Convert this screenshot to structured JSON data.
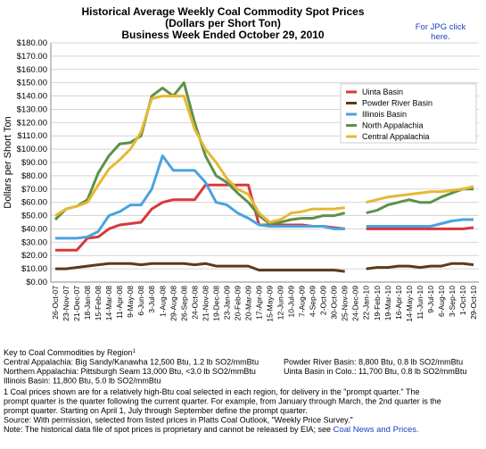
{
  "chart_data": {
    "type": "line",
    "title": "Historical Average Weekly Coal Commodity Spot Prices",
    "subtitle": [
      "(Dollars per Short Ton)",
      "Business Week Ended October 29, 2010"
    ],
    "y_label": "Dollars per Short Ton",
    "categories": [
      "26-Oct-07",
      "23-Nov-07",
      "21-Dec-07",
      "18-Jan-08",
      "15-Feb-08",
      "14-Mar-08",
      "11-Apr-08",
      "9-May-08",
      "6-Jun-08",
      "3-Jul-08",
      "1-Aug-08",
      "29-Aug-08",
      "26-Sep-08",
      "24-Oct-08",
      "21-Nov-08",
      "19-Dec-08",
      "23-Jan-09",
      "20-Feb-09",
      "20-Mar-09",
      "17-Apr-09",
      "15-May-09",
      "12-Jun-09",
      "10-Jul-09",
      "7-Aug-09",
      "4-Sep-09",
      "2-Oct-09",
      "30-Oct-09",
      "25-Nov-09",
      "24-Dec-09",
      "22-Jan-10",
      "19-Feb-10",
      "19-Mar-10",
      "16-Apr-10",
      "14-May-10",
      "11-Jun-10",
      "9-Jul-10",
      "6-Aug-10",
      "3-Sep-10",
      "1-Oct-10",
      "29-Oct-10"
    ],
    "series": [
      {
        "name": "Uinta Basin",
        "color": "#d9383a",
        "values": [
          24,
          24,
          24,
          33,
          34,
          40,
          43,
          44,
          45,
          55,
          60,
          62,
          62,
          62,
          73,
          73,
          73,
          73,
          73,
          43,
          43,
          43,
          43,
          43,
          42,
          42,
          41,
          40,
          null,
          40,
          40,
          40,
          40,
          40,
          40,
          40,
          40,
          40,
          40,
          41
        ]
      },
      {
        "name": "Powder River Basin",
        "color": "#5a3a1f",
        "values": [
          10,
          10,
          11,
          12,
          13,
          14,
          14,
          14,
          13,
          14,
          14,
          14,
          14,
          13,
          14,
          12,
          12,
          12,
          12,
          9,
          9,
          9,
          9,
          9,
          9,
          9,
          9,
          8,
          null,
          10,
          11,
          11,
          12,
          12,
          11,
          12,
          12,
          14,
          14,
          13
        ]
      },
      {
        "name": "Illinois Basin",
        "color": "#4aa3df",
        "values": [
          33,
          33,
          33,
          34,
          38,
          50,
          53,
          58,
          58,
          70,
          95,
          84,
          84,
          84,
          75,
          60,
          58,
          52,
          48,
          43,
          42,
          42,
          42,
          42,
          42,
          42,
          40,
          40,
          null,
          42,
          42,
          42,
          42,
          42,
          42,
          42,
          44,
          46,
          47,
          47
        ]
      },
      {
        "name": "North Appalachia",
        "color": "#5e9148",
        "values": [
          47,
          55,
          57,
          62,
          82,
          95,
          104,
          105,
          110,
          140,
          146,
          140,
          150,
          120,
          95,
          80,
          75,
          67,
          60,
          50,
          44,
          45,
          47,
          48,
          48,
          50,
          50,
          52,
          null,
          52,
          54,
          58,
          60,
          62,
          60,
          60,
          64,
          67,
          70,
          70
        ]
      },
      {
        "name": "Central Appalachia",
        "color": "#e7b833",
        "values": [
          50,
          55,
          57,
          60,
          73,
          85,
          92,
          100,
          113,
          138,
          140,
          140,
          140,
          115,
          100,
          90,
          78,
          70,
          66,
          52,
          45,
          47,
          52,
          53,
          55,
          55,
          55,
          56,
          null,
          60,
          62,
          64,
          65,
          66,
          67,
          68,
          68,
          69,
          70,
          72
        ]
      }
    ],
    "ylim": [
      0,
      180
    ],
    "yticks": [
      {
        "value": 0,
        "label": "$0.00"
      },
      {
        "value": 10,
        "label": "$10.00"
      },
      {
        "value": 20,
        "label": "$20.00"
      },
      {
        "value": 30,
        "label": "$30.00"
      },
      {
        "value": 40,
        "label": "$40.00"
      },
      {
        "value": 50,
        "label": "$50.00"
      },
      {
        "value": 60,
        "label": "$60.00"
      },
      {
        "value": 70,
        "label": "$70.00"
      },
      {
        "value": 80,
        "label": "$80.00"
      },
      {
        "value": 90,
        "label": "$90.00"
      },
      {
        "value": 100,
        "label": "$100.00"
      },
      {
        "value": 110,
        "label": "$110.00"
      },
      {
        "value": 120,
        "label": "$120.00"
      },
      {
        "value": 130,
        "label": "$130.00"
      },
      {
        "value": 140,
        "label": "$140.00"
      },
      {
        "value": 150,
        "label": "$150.00"
      },
      {
        "value": 160,
        "label": "$160.00"
      },
      {
        "value": 170,
        "label": "$170.00"
      },
      {
        "value": 180,
        "label": "$180.00"
      }
    ],
    "grid": true,
    "legend": "upper right"
  },
  "jpg_link": [
    "For JPG click",
    "here."
  ],
  "notes": {
    "key_title": "Key to Coal Commodities by Region",
    "key_mark": "1",
    "key_left": [
      "Central Appalachia:  Big Sandy/Kanawha 12,500 Btu, 1.2 lb SO2/mmBtu",
      "Northern Appalachia: Pittsburgh Seam 13,000 Btu, <3.0 lb SO2/mmBtu",
      "Illinois Basin: 11,800 Btu, 5.0 lb SO2/mmBtu"
    ],
    "key_right": [
      "Powder River Basin:  8,800 Btu, 0.8 lb SO2/mmBtu",
      "Uinta Basin in Colo.: 11,700 Btu, 0.8 lb SO2/mmBtu"
    ],
    "footnote": [
      "1 Coal prices shown are for a relatively high-Btu coal selected in each region, for delivery in the \"prompt quarter.\" The",
      "prompt quarter is the quarter following the current quarter. For example, from January through March, the 2nd quarter is the",
      "prompt quarter. Starting on April 1, July through September define the prompt quarter.",
      "Source: With permission, selected from listed prices in Platts Coal Outlook, \"Weekly Price Survey.\""
    ],
    "last_note": "Note: The historical data file of spot prices is proprietary and cannot be released by EIA; see ",
    "last_link": "Coal News and Prices."
  }
}
